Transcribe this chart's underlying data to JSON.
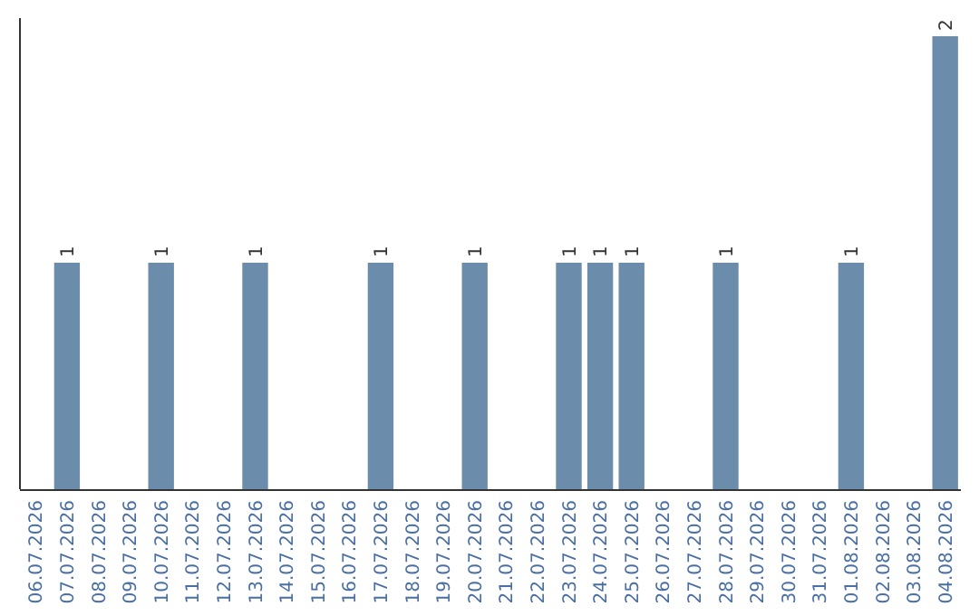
{
  "chart_data": {
    "type": "bar",
    "categories": [
      "06.07.2026",
      "07.07.2026",
      "08.07.2026",
      "09.07.2026",
      "10.07.2026",
      "11.07.2026",
      "12.07.2026",
      "13.07.2026",
      "14.07.2026",
      "15.07.2026",
      "16.07.2026",
      "17.07.2026",
      "18.07.2026",
      "19.07.2026",
      "20.07.2026",
      "21.07.2026",
      "22.07.2026",
      "23.07.2026",
      "24.07.2026",
      "25.07.2026",
      "26.07.2026",
      "27.07.2026",
      "28.07.2026",
      "29.07.2026",
      "30.07.2026",
      "31.07.2026",
      "01.08.2026",
      "02.08.2026",
      "03.08.2026",
      "04.08.2026"
    ],
    "values": [
      0,
      1,
      0,
      0,
      1,
      0,
      0,
      1,
      0,
      0,
      0,
      1,
      0,
      0,
      1,
      0,
      0,
      1,
      1,
      1,
      0,
      0,
      1,
      0,
      0,
      0,
      1,
      0,
      0,
      2
    ],
    "value_labels": [
      null,
      "1",
      null,
      null,
      "1",
      null,
      null,
      "1",
      null,
      null,
      null,
      "1",
      null,
      null,
      "1",
      null,
      null,
      "1",
      "1",
      "1",
      null,
      null,
      "1",
      null,
      null,
      null,
      "1",
      null,
      null,
      "2"
    ],
    "color": "#6b8caa"
  }
}
